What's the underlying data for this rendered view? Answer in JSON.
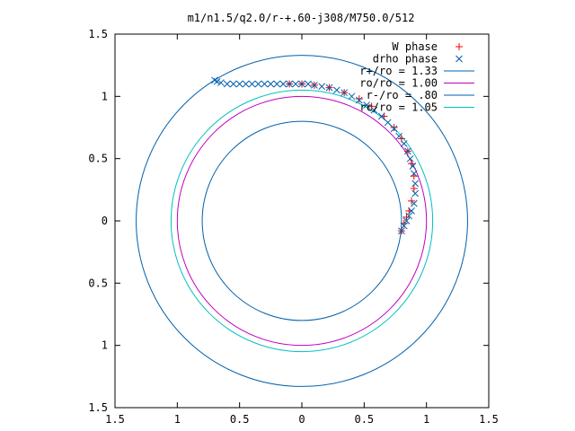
{
  "chart_data": {
    "type": "scatter",
    "title": "m1/n1.5/q2.0/r-+.60-j308/M750.0/512",
    "xlim": [
      -1.5,
      1.5
    ],
    "ylim": [
      -1.5,
      1.5
    ],
    "xticks": [
      -1.5,
      -1,
      -0.5,
      0,
      0.5,
      1,
      1.5
    ],
    "yticks": [
      -1.5,
      -1,
      -0.5,
      0,
      0.5,
      1,
      1.5
    ],
    "xtick_labels": [
      "1.5",
      "1",
      "0.5",
      "0",
      "0.5",
      "1",
      "1.5"
    ],
    "ytick_labels": [
      "1.5",
      "1",
      "0.5",
      "0",
      "0.5",
      "1",
      "1.5"
    ],
    "grid": false,
    "legend_position": "top-right",
    "legend": [
      {
        "label": "W phase",
        "kind": "marker-plus",
        "color": "#ff0000"
      },
      {
        "label": "drho phase",
        "kind": "marker-x",
        "color": "#0060ad"
      },
      {
        "label": "r+/ro = 1.33",
        "kind": "line",
        "color": "#0060ad"
      },
      {
        "label": "ro/ro = 1.00",
        "kind": "line",
        "color": "#c000c0"
      },
      {
        "label": "r-/ro = .80",
        "kind": "line",
        "color": "#0060ad"
      },
      {
        "label": "rc/ro = 1.05",
        "kind": "line",
        "color": "#00c0c0"
      }
    ],
    "circles": [
      {
        "r": 1.33,
        "color": "#0060ad"
      },
      {
        "r": 1.0,
        "color": "#c000c0"
      },
      {
        "r": 0.8,
        "color": "#0060ad"
      },
      {
        "r": 1.05,
        "color": "#00c0c0"
      }
    ],
    "series": [
      {
        "name": "W phase",
        "marker": "plus",
        "color": "#ff0000",
        "x": [
          0.8,
          0.82,
          0.84,
          0.86,
          0.88,
          0.9,
          0.9,
          0.88,
          0.85,
          0.8,
          0.74,
          0.66,
          0.56,
          0.46,
          0.34,
          0.22,
          0.1,
          0.0,
          -0.1
        ],
        "y": [
          -0.08,
          -0.02,
          0.03,
          0.08,
          0.16,
          0.26,
          0.36,
          0.46,
          0.56,
          0.66,
          0.75,
          0.84,
          0.92,
          0.98,
          1.03,
          1.07,
          1.09,
          1.1,
          1.1
        ]
      },
      {
        "name": "drho phase",
        "marker": "x",
        "color": "#0060ad",
        "x": [
          0.8,
          0.82,
          0.84,
          0.86,
          0.88,
          0.9,
          0.91,
          0.91,
          0.9,
          0.89,
          0.87,
          0.85,
          0.82,
          0.78,
          0.74,
          0.69,
          0.64,
          0.58,
          0.52,
          0.46,
          0.4,
          0.34,
          0.28,
          0.22,
          0.16,
          0.1,
          0.05,
          0.0,
          -0.05,
          -0.1,
          -0.15,
          -0.2,
          -0.25,
          -0.3,
          -0.35,
          -0.4,
          -0.45,
          -0.5,
          -0.55,
          -0.6,
          -0.65,
          -0.68,
          -0.7
        ],
        "y": [
          -0.08,
          -0.04,
          0.0,
          0.04,
          0.08,
          0.14,
          0.22,
          0.3,
          0.38,
          0.44,
          0.5,
          0.56,
          0.62,
          0.68,
          0.74,
          0.79,
          0.84,
          0.89,
          0.93,
          0.97,
          1.0,
          1.03,
          1.05,
          1.07,
          1.08,
          1.09,
          1.1,
          1.1,
          1.1,
          1.1,
          1.1,
          1.1,
          1.1,
          1.1,
          1.1,
          1.1,
          1.1,
          1.1,
          1.1,
          1.1,
          1.11,
          1.12,
          1.13
        ]
      }
    ]
  }
}
